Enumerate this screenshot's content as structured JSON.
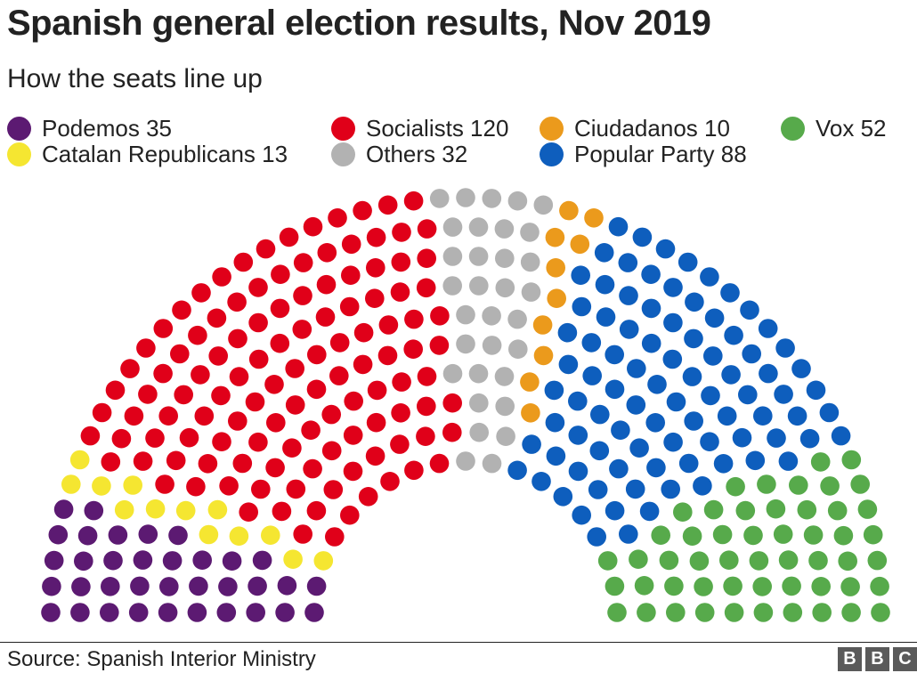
{
  "header": {
    "title": "Spanish general election results, Nov 2019",
    "subtitle": "How the seats line up"
  },
  "legend": [
    {
      "label": "Podemos 35",
      "color": "#5c1a72"
    },
    {
      "label": "Socialists 120",
      "color": "#e00019"
    },
    {
      "label": "Ciudadanos 10",
      "color": "#eb9a1c"
    },
    {
      "label": "Vox 52",
      "color": "#57aa4b"
    },
    {
      "label": "Catalan Republicans 13",
      "color": "#f5e631"
    },
    {
      "label": "Others 32",
      "color": "#b2b2b2"
    },
    {
      "label": "Popular Party 88",
      "color": "#0e5ebd"
    }
  ],
  "chart_data": {
    "type": "parliament",
    "total_seats": 350,
    "rows": 10,
    "parties": [
      {
        "name": "Podemos",
        "seats": 35,
        "color": "#5c1a72"
      },
      {
        "name": "Catalan Republicans",
        "seats": 13,
        "color": "#f5e631"
      },
      {
        "name": "Socialists",
        "seats": 120,
        "color": "#e00019"
      },
      {
        "name": "Others",
        "seats": 32,
        "color": "#b2b2b2"
      },
      {
        "name": "Ciudadanos",
        "seats": 10,
        "color": "#eb9a1c"
      },
      {
        "name": "Popular Party",
        "seats": 88,
        "color": "#0e5ebd"
      },
      {
        "name": "Vox",
        "seats": 52,
        "color": "#57aa4b"
      }
    ]
  },
  "footer": {
    "source": "Source: Spanish Interior Ministry",
    "logo_letters": [
      "B",
      "B",
      "C"
    ]
  }
}
